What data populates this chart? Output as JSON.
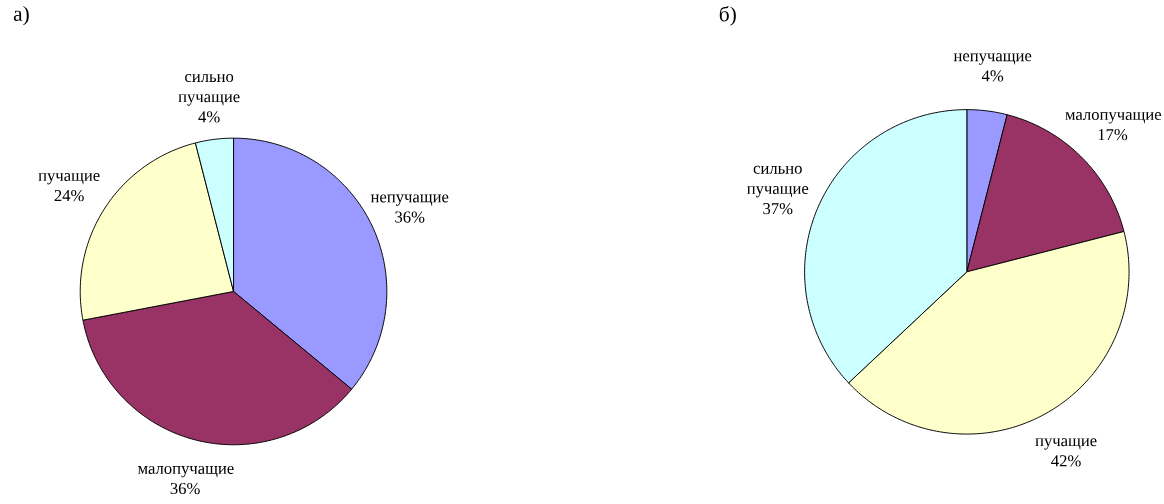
{
  "chart_data": [
    {
      "type": "pie",
      "title": "а)",
      "categories": [
        "непучащие",
        "малопучащие",
        "пучащие",
        "сильно пучащие"
      ],
      "values": [
        36,
        36,
        24,
        4
      ],
      "value_labels": [
        "36%",
        "36%",
        "24%",
        "4%"
      ],
      "colors": [
        "#9999ff",
        "#993366",
        "#ffffcc",
        "#ccffff"
      ]
    },
    {
      "type": "pie",
      "title": "б)",
      "categories": [
        "непучащие",
        "малопучащие",
        "пучащие",
        "сильно пучащие"
      ],
      "values": [
        4,
        17,
        42,
        37
      ],
      "value_labels": [
        "4%",
        "17%",
        "42%",
        "37%"
      ],
      "colors": [
        "#9999ff",
        "#993366",
        "#ffffcc",
        "#ccffff"
      ]
    }
  ]
}
